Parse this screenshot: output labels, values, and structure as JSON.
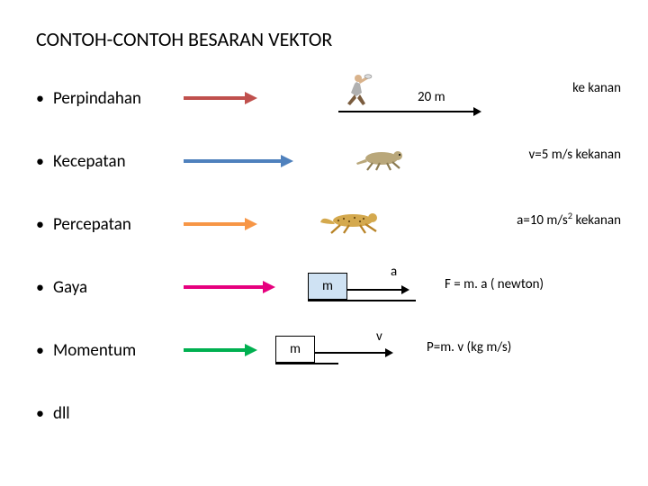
{
  "title": "CONTOH-CONTOH BESARAN VEKTOR",
  "items": {
    "perpindahan": {
      "label": "Perpindahan",
      "arrow_color": "#c0504d",
      "arrow_length": 68,
      "distance_label": "20 m",
      "right_note": "ke kanan"
    },
    "kecepatan": {
      "label": "Kecepatan",
      "arrow_color": "#4f81bd",
      "arrow_length": 108,
      "right_note": "v=5 m/s kekanan"
    },
    "percepatan": {
      "label": "Percepatan",
      "arrow_color": "#f79646",
      "arrow_length": 68,
      "right_note_html": "a=10 m/s<sup>2</sup> kekanan"
    },
    "gaya": {
      "label": "Gaya",
      "arrow_color": "#e6007e",
      "arrow_length": 88,
      "box_label": "m",
      "box_fill": "#cfe2f3",
      "overlabel": "a",
      "formula": "F = m. a ( newton)"
    },
    "momentum": {
      "label": "Momentum",
      "arrow_color": "#00b050",
      "arrow_length": 68,
      "box_label": "m",
      "box_fill": "#ffffff",
      "overlabel": "v",
      "formula": "P=m. v (kg m/s)"
    },
    "dll": {
      "label": "dll"
    }
  },
  "colors": {
    "text": "#000000",
    "background": "#ffffff",
    "thin_arrow": "#000000"
  }
}
